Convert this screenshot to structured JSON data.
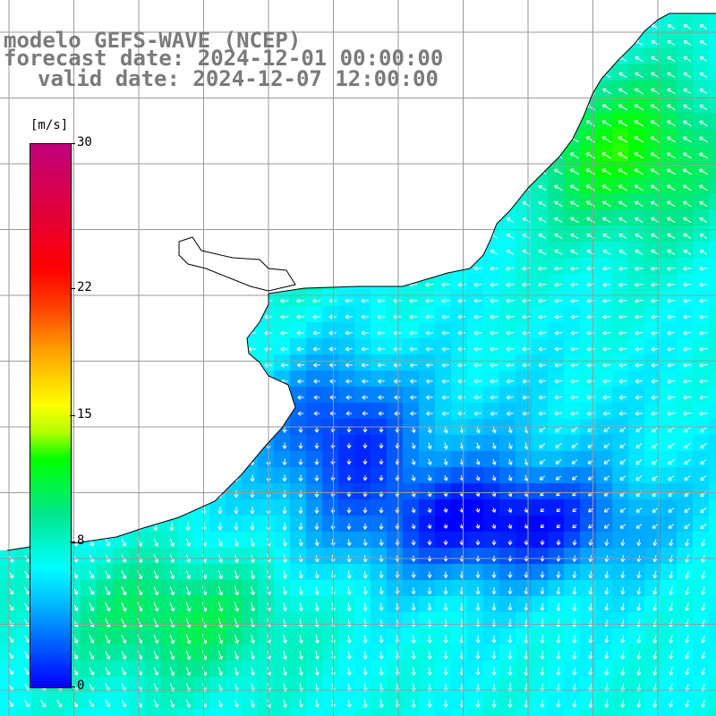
{
  "title": {
    "line1": "modelo GEFS-WAVE (NCEP)",
    "line2": "forecast date: 2024-12-01 00:00:00",
    "line3": "valid date: 2024-12-07 12:00:00"
  },
  "colorbar": {
    "unit": "[m/s]",
    "ticks": [
      {
        "label": "30",
        "value": 30
      },
      {
        "label": "22",
        "value": 22
      },
      {
        "label": "15",
        "value": 15
      },
      {
        "label": "8",
        "value": 8
      },
      {
        "label": "0",
        "value": 0
      }
    ]
  },
  "colors": {
    "land": "#ffffff",
    "grid": "#a0a0a0",
    "coast": "#000000",
    "arrow": "#ffffff",
    "title": "#7a7a7a"
  }
}
